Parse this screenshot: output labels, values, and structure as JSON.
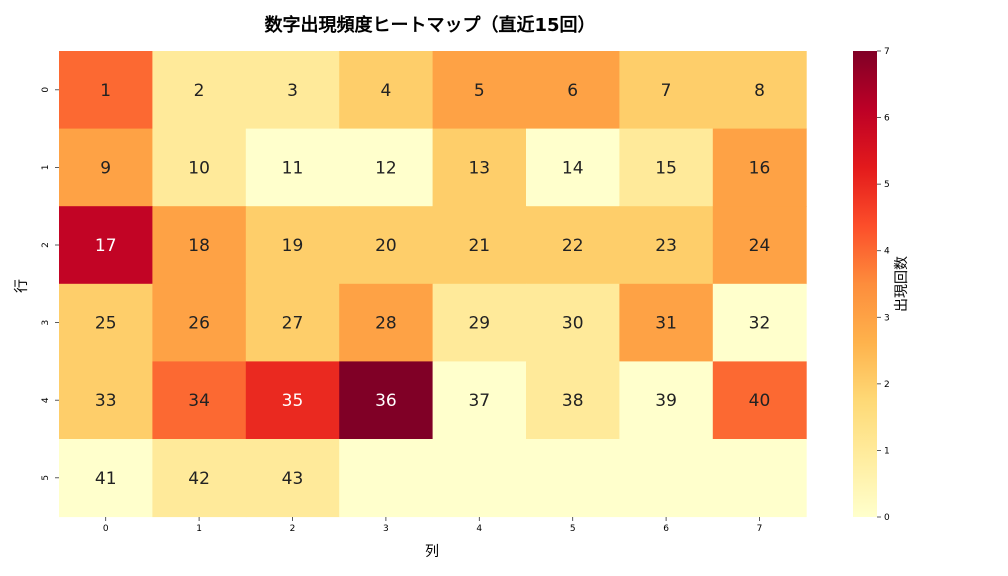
{
  "chart_data": {
    "type": "heatmap",
    "title": "数字出現頻度ヒートマップ（直近15回）",
    "xlabel": "列",
    "ylabel": "行",
    "x_ticks": [
      "0",
      "1",
      "2",
      "3",
      "4",
      "5",
      "6",
      "7"
    ],
    "y_ticks": [
      "0",
      "1",
      "2",
      "3",
      "4",
      "5"
    ],
    "labels": [
      [
        "1",
        "2",
        "3",
        "4",
        "5",
        "6",
        "7",
        "8"
      ],
      [
        "9",
        "10",
        "11",
        "12",
        "13",
        "14",
        "15",
        "16"
      ],
      [
        "17",
        "18",
        "19",
        "20",
        "21",
        "22",
        "23",
        "24"
      ],
      [
        "25",
        "26",
        "27",
        "28",
        "29",
        "30",
        "31",
        "32"
      ],
      [
        "33",
        "34",
        "35",
        "36",
        "37",
        "38",
        "39",
        "40"
      ],
      [
        "41",
        "42",
        "43",
        "",
        "",
        "",
        "",
        ""
      ]
    ],
    "values": [
      [
        4,
        1,
        1,
        2,
        3,
        3,
        2,
        2
      ],
      [
        3,
        1,
        0,
        0,
        2,
        0,
        1,
        3
      ],
      [
        6,
        3,
        2,
        2,
        2,
        2,
        2,
        3
      ],
      [
        2,
        3,
        2,
        3,
        1,
        1,
        3,
        0
      ],
      [
        2,
        4,
        5,
        7,
        0,
        1,
        0,
        4
      ],
      [
        0,
        1,
        1,
        0,
        0,
        0,
        0,
        0
      ]
    ],
    "colorbar": {
      "label": "出現回数",
      "range": [
        0,
        7
      ],
      "ticks": [
        "0",
        "1",
        "2",
        "3",
        "4",
        "5",
        "6",
        "7"
      ]
    },
    "colormap": "YlOrRd",
    "colors": [
      "#ffffcc",
      "#ffeda0",
      "#fed976",
      "#feb24c",
      "#fd8d3c",
      "#fc4e2a",
      "#e31a1c",
      "#bd0026",
      "#800026"
    ]
  }
}
